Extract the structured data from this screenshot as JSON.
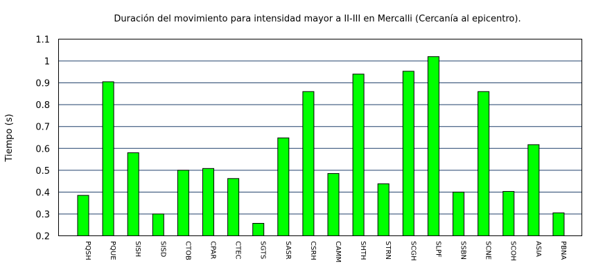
{
  "chart_data": {
    "type": "bar",
    "title": "Duración del movimiento para intensidad mayor a II-III en Mercalli (Cercanía al epicentro).",
    "xlabel": "",
    "ylabel": "Tiempo (s)",
    "ylim": [
      0.2,
      1.1
    ],
    "yticks": [
      "0.2",
      "0.3",
      "0.4",
      "0.5",
      "0.6",
      "0.7",
      "0.8",
      "0.9",
      "1",
      "1.1"
    ],
    "grid": true,
    "bar_color": "#00ff00",
    "categories": [
      "PQSH",
      "PQUE",
      "SISH",
      "SISD",
      "CTOB",
      "CPAR",
      "CTEC",
      "SGTS",
      "SASR",
      "CSRH",
      "CAMM",
      "SHTH",
      "STRN",
      "SCGH",
      "SLPF",
      "SSBN",
      "SCNE",
      "SCOH",
      "ASIA",
      "PBNA"
    ],
    "values": [
      0.385,
      0.905,
      0.58,
      0.3,
      0.5,
      0.508,
      0.462,
      0.257,
      0.648,
      0.86,
      0.485,
      0.94,
      0.438,
      0.953,
      1.02,
      0.4,
      0.86,
      0.403,
      0.617,
      0.305
    ]
  }
}
